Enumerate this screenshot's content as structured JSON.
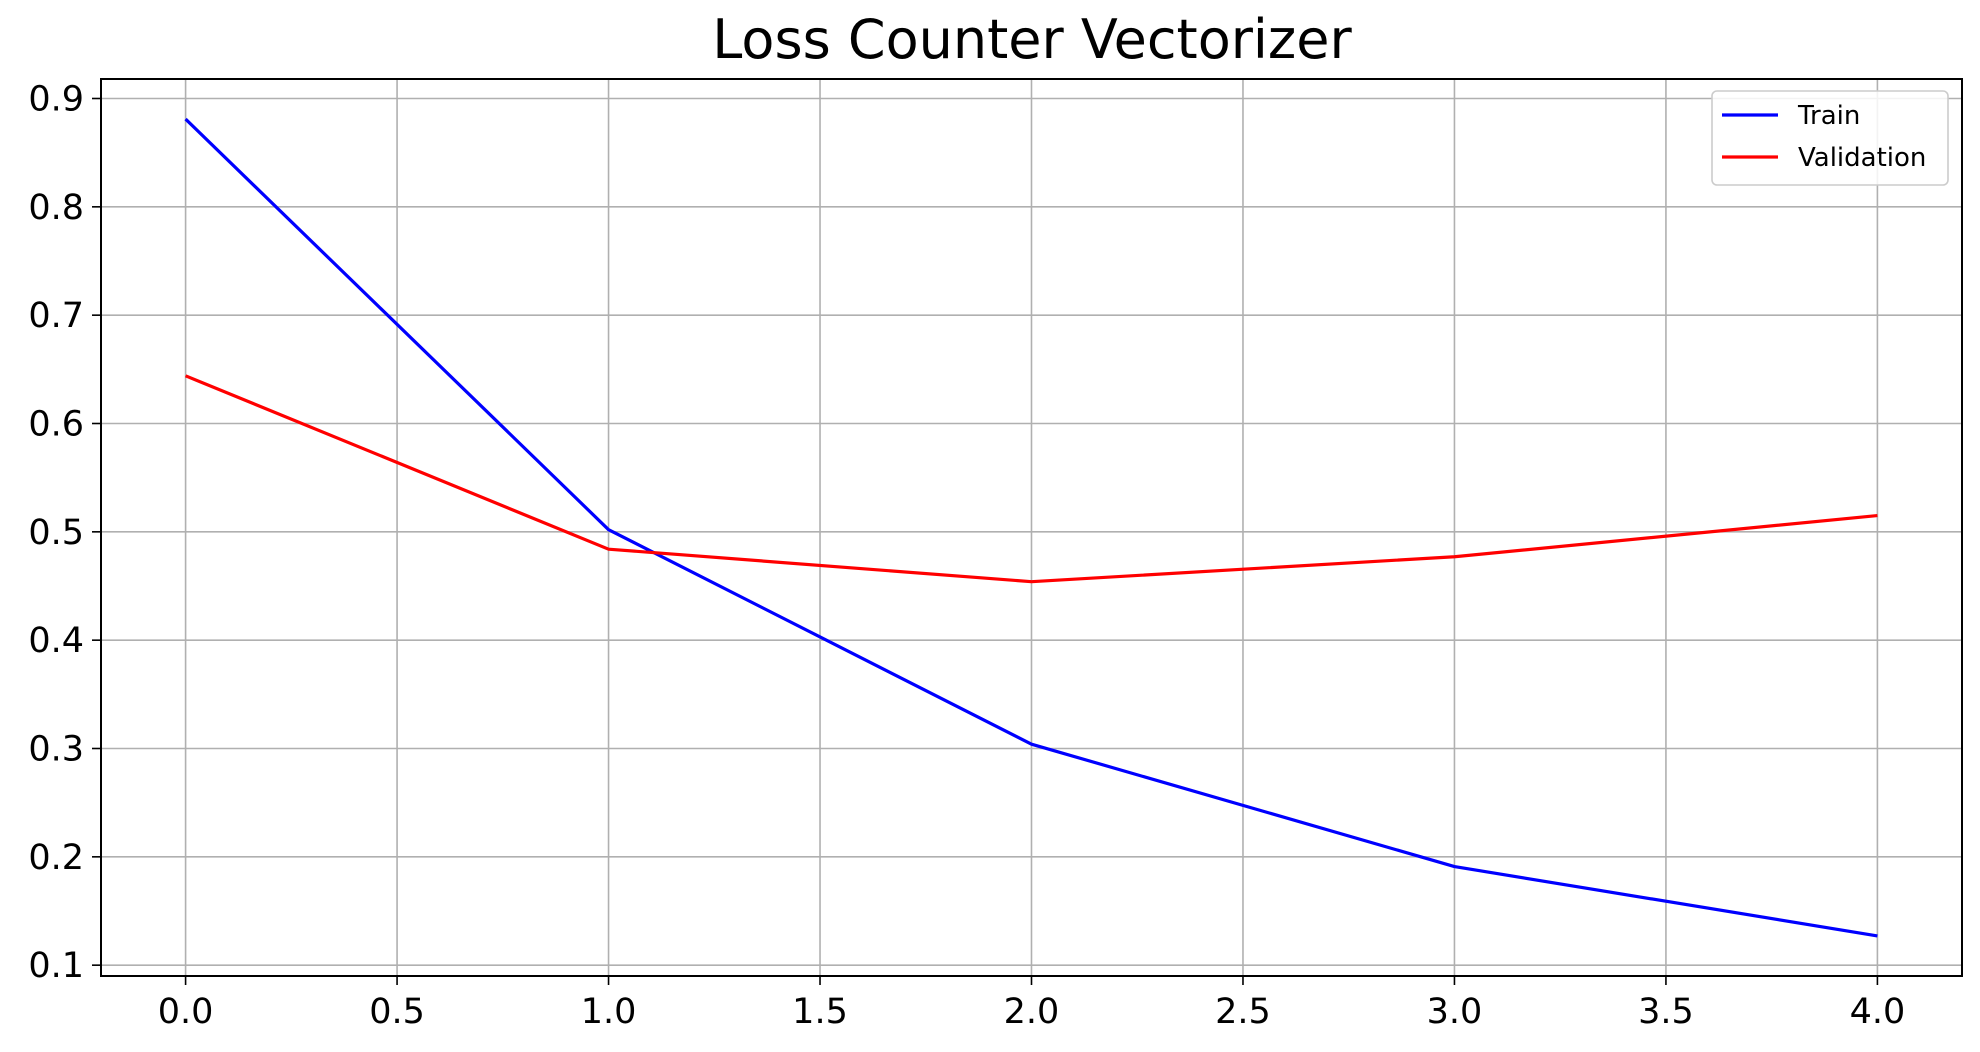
{
  "chart_data": {
    "type": "line",
    "title": "Loss Counter Vectorizer",
    "xlabel": "",
    "ylabel": "",
    "x": [
      0,
      1,
      2,
      3,
      4
    ],
    "xlim": [
      -0.2,
      4.2
    ],
    "ylim": [
      0.09,
      0.918
    ],
    "xticks": [
      0.0,
      0.5,
      1.0,
      1.5,
      2.0,
      2.5,
      3.0,
      3.5,
      4.0
    ],
    "xtick_labels": [
      "0.0",
      "0.5",
      "1.0",
      "1.5",
      "2.0",
      "2.5",
      "3.0",
      "3.5",
      "4.0"
    ],
    "yticks": [
      0.1,
      0.2,
      0.3,
      0.4,
      0.5,
      0.6,
      0.7,
      0.8,
      0.9
    ],
    "ytick_labels": [
      "0.1",
      "0.2",
      "0.3",
      "0.4",
      "0.5",
      "0.6",
      "0.7",
      "0.8",
      "0.9"
    ],
    "grid": true,
    "legend_position": "top-right",
    "series": [
      {
        "name": "Train",
        "color": "#0000ff",
        "values": [
          0.881,
          0.502,
          0.304,
          0.191,
          0.127
        ]
      },
      {
        "name": "Validation",
        "color": "#ff0000",
        "values": [
          0.644,
          0.484,
          0.454,
          0.477,
          0.515
        ]
      }
    ]
  }
}
